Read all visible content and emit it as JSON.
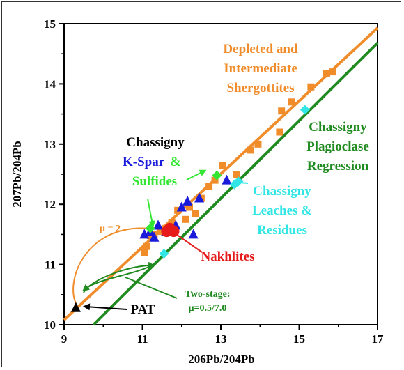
{
  "chart_data": {
    "type": "scatter",
    "xlabel": "206Pb/204Pb",
    "ylabel": "207Pb/204Pb",
    "xlim": [
      9,
      17
    ],
    "ylim": [
      10,
      15
    ],
    "xticks": [
      "9",
      "11",
      "13",
      "15",
      "17"
    ],
    "yticks": [
      "10",
      "11",
      "12",
      "13",
      "14",
      "15"
    ],
    "grid": false,
    "colors": {
      "orange": "#f08c2a",
      "green": "#1f8a1f",
      "blue": "#1a1adb",
      "lime": "#33e633",
      "cyan": "#33e6e6",
      "red": "#e61a1a",
      "black": "#000000"
    },
    "lines": [
      {
        "color": "orange",
        "x": [
          9.0,
          17.0
        ],
        "y": [
          10.08,
          14.93
        ]
      },
      {
        "color": "green",
        "x": [
          9.75,
          17.0
        ],
        "y": [
          10.0,
          14.68
        ]
      }
    ],
    "series": [
      {
        "marker": "square",
        "color": "orange",
        "x": [
          11.05,
          11.1,
          11.2,
          11.3,
          11.45,
          11.6,
          11.75,
          11.9,
          12.1,
          12.2,
          12.35,
          12.5,
          12.7,
          12.85,
          13.05,
          13.4,
          13.75,
          13.95,
          14.5,
          14.55,
          14.8,
          15.3,
          15.7,
          15.85
        ],
        "y": [
          11.2,
          11.3,
          11.48,
          11.5,
          11.55,
          11.6,
          11.7,
          11.9,
          11.75,
          11.95,
          11.85,
          12.1,
          12.3,
          12.4,
          12.65,
          12.5,
          12.9,
          13.0,
          13.2,
          13.55,
          13.7,
          13.95,
          14.17,
          14.2
        ]
      },
      {
        "marker": "triangle",
        "color": "blue",
        "x": [
          11.05,
          11.2,
          11.3,
          11.4,
          11.6,
          11.75,
          11.85,
          12.0,
          12.15,
          12.3,
          12.45,
          13.15
        ],
        "y": [
          11.5,
          11.55,
          11.45,
          11.65,
          11.55,
          11.55,
          11.65,
          11.95,
          12.05,
          11.5,
          12.1,
          12.4
        ]
      },
      {
        "marker": "diamond",
        "color": "lime",
        "x": [
          11.2,
          12.9
        ],
        "y": [
          11.6,
          12.48
        ]
      },
      {
        "marker": "diamond",
        "color": "cyan",
        "x": [
          11.55,
          13.35,
          13.45,
          15.15
        ],
        "y": [
          11.18,
          12.33,
          12.38,
          13.57
        ]
      },
      {
        "marker": "circle",
        "color": "red",
        "x": [
          11.7,
          11.62,
          11.8
        ],
        "y": [
          11.6,
          11.55,
          11.55
        ]
      },
      {
        "marker": "triangle",
        "color": "black",
        "x": [
          9.3
        ],
        "y": [
          10.28
        ]
      }
    ]
  },
  "annotations": {
    "shergottites": [
      "Depleted and",
      "Intermediate",
      "Shergottites"
    ],
    "chassigny": "Chassigny",
    "kspar": "K-Spar",
    "amp": "&",
    "sulfides": "Sulfides",
    "plagioclase": [
      "Chassigny",
      "Plagioclase",
      "Regression"
    ],
    "leaches": [
      "Chassigny",
      "Leaches &",
      "Residues"
    ],
    "nakhlites": "Nakhlites",
    "mu": "μ = 2",
    "pat": "PAT",
    "twostage": [
      "Two-stage:",
      "μ=0.5/7.0"
    ]
  }
}
